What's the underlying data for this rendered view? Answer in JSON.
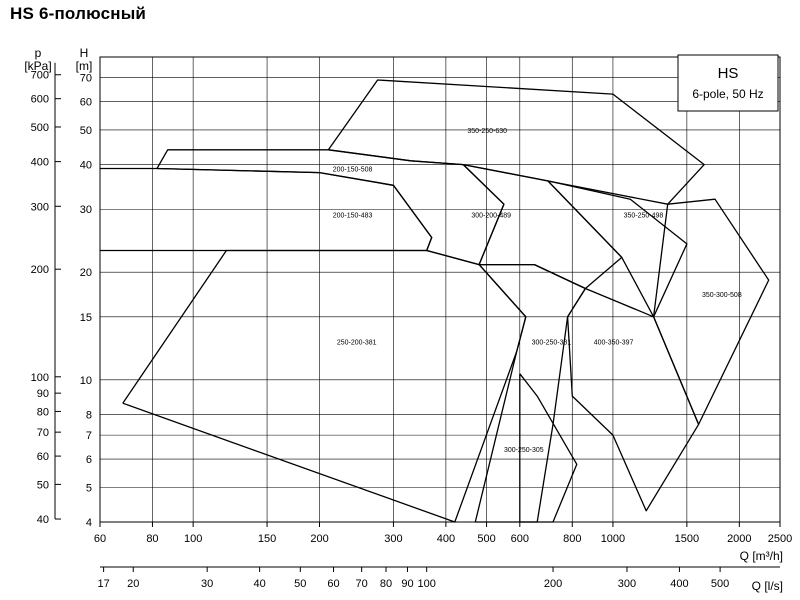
{
  "title": "HS 6-полюсный",
  "chart_data": {
    "type": "line",
    "title": "HS 6-полюсный",
    "legend": {
      "line1": "HS",
      "line2": "6-pole, 50 Hz"
    },
    "x_axis": {
      "label": "Q [m³/h]",
      "scale": "log",
      "range": [
        60,
        2500
      ],
      "ticks": [
        60,
        80,
        100,
        150,
        200,
        300,
        400,
        500,
        600,
        800,
        1000,
        1500,
        2000,
        2500
      ]
    },
    "x2_axis": {
      "label": "Q [l/s]",
      "scale": "log",
      "ticks": [
        17,
        20,
        30,
        40,
        50,
        60,
        70,
        80,
        90,
        100,
        200,
        300,
        400,
        500
      ]
    },
    "y_axis": {
      "label_line1": "H",
      "label_line2": "[m]",
      "scale": "log",
      "range": [
        4,
        80
      ],
      "ticks": [
        4,
        5,
        6,
        7,
        8,
        10,
        15,
        20,
        30,
        40,
        50,
        60,
        70
      ]
    },
    "y2_axis": {
      "label_line1": "p",
      "label_line2": "[kPa]",
      "ticks": [
        40,
        50,
        60,
        70,
        80,
        90,
        100,
        200,
        300,
        400,
        500,
        600,
        700
      ]
    },
    "grid": true,
    "regions": [
      {
        "name": "350-250-630",
        "label_q": 450,
        "label_h": 50,
        "outline": [
          [
            210,
            44
          ],
          [
            275,
            69
          ],
          [
            1000,
            63
          ],
          [
            1650,
            40
          ],
          [
            1350,
            31
          ],
          [
            440,
            40
          ],
          [
            330,
            41
          ],
          [
            210,
            44
          ]
        ]
      },
      {
        "name": "200-150-508",
        "label_q": 215,
        "label_h": 39,
        "outline": [
          [
            82,
            39
          ],
          [
            87,
            44
          ],
          [
            210,
            44
          ],
          [
            330,
            41
          ],
          [
            440,
            40
          ],
          [
            550,
            31
          ],
          [
            480,
            21
          ],
          [
            360,
            23
          ],
          [
            370,
            25
          ],
          [
            300,
            35
          ],
          [
            200,
            38
          ],
          [
            82,
            39
          ]
        ]
      },
      {
        "name": "200-150-483",
        "label_q": 215,
        "label_h": 29,
        "outline": [
          [
            60,
            39
          ],
          [
            82,
            39
          ],
          [
            200,
            38
          ],
          [
            300,
            35
          ],
          [
            370,
            25
          ],
          [
            360,
            23
          ],
          [
            60,
            23
          ]
        ]
      },
      {
        "name": "300-200-489",
        "label_q": 460,
        "label_h": 29,
        "outline": [
          [
            440,
            40
          ],
          [
            700,
            36
          ],
          [
            1050,
            22
          ],
          [
            860,
            18
          ],
          [
            650,
            21
          ],
          [
            480,
            21
          ],
          [
            550,
            31
          ],
          [
            440,
            40
          ]
        ]
      },
      {
        "name": "350-250-498",
        "label_q": 1060,
        "label_h": 29,
        "outline": [
          [
            700,
            36
          ],
          [
            1100,
            32
          ],
          [
            1500,
            24
          ],
          [
            1250,
            15
          ],
          [
            1050,
            22
          ],
          [
            700,
            36
          ]
        ]
      },
      {
        "name": "350-300-508",
        "label_q": 1630,
        "label_h": 17.4,
        "outline": [
          [
            1350,
            31
          ],
          [
            1750,
            32
          ],
          [
            2350,
            19
          ],
          [
            1600,
            7.5
          ],
          [
            1250,
            15
          ],
          [
            1350,
            31
          ]
        ]
      },
      {
        "name": "250-200-381",
        "label_q": 220,
        "label_h": 12.8,
        "outline": [
          [
            68,
            8.6
          ],
          [
            120,
            23
          ],
          [
            360,
            23
          ],
          [
            480,
            21
          ],
          [
            620,
            15
          ],
          [
            590,
            12
          ],
          [
            420,
            4
          ],
          [
            68,
            8.6
          ]
        ]
      },
      {
        "name": "300-250-381",
        "label_q": 640,
        "label_h": 12.8,
        "outline": [
          [
            480,
            21
          ],
          [
            650,
            21
          ],
          [
            860,
            18
          ],
          [
            780,
            15
          ],
          [
            720,
            7.5
          ],
          [
            660,
            4
          ],
          [
            470,
            4
          ],
          [
            590,
            12
          ],
          [
            620,
            15
          ],
          [
            480,
            21
          ]
        ]
      },
      {
        "name": "400-350-397",
        "label_q": 900,
        "label_h": 12.8,
        "outline": [
          [
            860,
            18
          ],
          [
            1250,
            15
          ],
          [
            1600,
            7.5
          ],
          [
            1200,
            4.3
          ],
          [
            1000,
            7
          ],
          [
            800,
            9
          ],
          [
            780,
            15
          ],
          [
            860,
            18
          ]
        ]
      },
      {
        "name": "300-250-305",
        "label_q": 550,
        "label_h": 6.4,
        "outline": [
          [
            600,
            10.4
          ],
          [
            660,
            9
          ],
          [
            820,
            5.8
          ],
          [
            720,
            4
          ],
          [
            600,
            4
          ],
          [
            600,
            10.4
          ]
        ]
      }
    ]
  }
}
